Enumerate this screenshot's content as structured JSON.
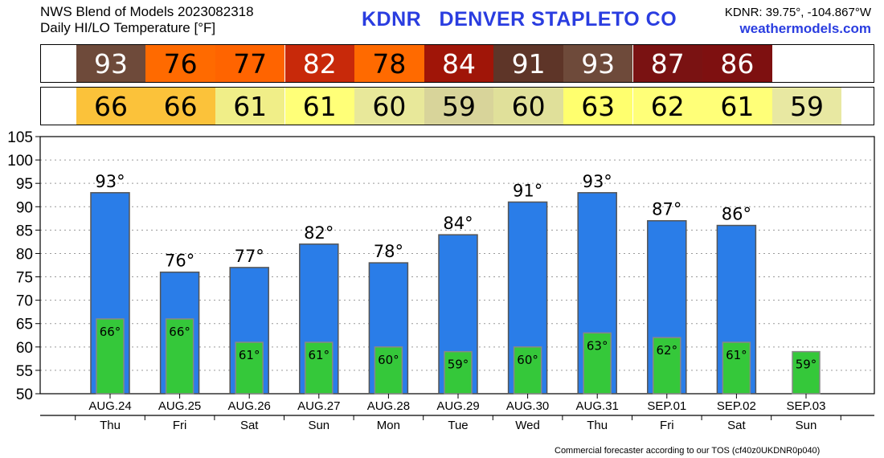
{
  "header": {
    "line1": "NWS Blend of Models 2023082318",
    "line2": "Daily HI/LO Temperature [°F]",
    "station": "KDNR   DENVER STAPLETO CO",
    "coords": "KDNR: 39.75°, -104.867°W",
    "site": "weathermodels.com"
  },
  "hi_strip": {
    "values": [
      "93",
      "76",
      "77",
      "82",
      "78",
      "84",
      "91",
      "93",
      "87",
      "86"
    ],
    "colors": [
      "#6e4a3a",
      "#ff6a00",
      "#ff6400",
      "#c8290a",
      "#ff6a00",
      "#a01508",
      "#5e3528",
      "#6e4a3a",
      "#7a1212",
      "#7e1010"
    ],
    "text_colors": [
      "#ffffff",
      "#000000",
      "#000000",
      "#ffffff",
      "#000000",
      "#ffffff",
      "#ffffff",
      "#ffffff",
      "#ffffff",
      "#ffffff"
    ]
  },
  "lo_strip": {
    "values": [
      "66",
      "66",
      "61",
      "61",
      "60",
      "59",
      "60",
      "63",
      "62",
      "61",
      "59"
    ],
    "colors": [
      "#fbc23a",
      "#fbc23a",
      "#f0ee88",
      "#ffff78",
      "#e8e89a",
      "#d8d49a",
      "#e0e09a",
      "#ffff6e",
      "#ffff78",
      "#ffff78",
      "#e8e8a2"
    ]
  },
  "footer": "Commercial forecaster according to our TOS (cf40z0UKDNR0p040)",
  "chart_data": {
    "type": "bar",
    "categories": [
      "AUG.24",
      "AUG.25",
      "AUG.26",
      "AUG.27",
      "AUG.28",
      "AUG.29",
      "AUG.30",
      "AUG.31",
      "SEP.01",
      "SEP.02",
      "SEP.03"
    ],
    "weekdays": [
      "Thu",
      "Fri",
      "Sat",
      "Sun",
      "Mon",
      "Tue",
      "Wed",
      "Thu",
      "Fri",
      "Sat",
      "Sun"
    ],
    "series": [
      {
        "values": [
          93,
          76,
          77,
          82,
          78,
          84,
          91,
          93,
          87,
          86,
          null
        ],
        "color": "#2a7de8",
        "labels": [
          "93°",
          "76°",
          "77°",
          "82°",
          "78°",
          "84°",
          "91°",
          "93°",
          "87°",
          "86°",
          ""
        ]
      },
      {
        "values": [
          66,
          66,
          61,
          61,
          60,
          59,
          60,
          63,
          62,
          61,
          59
        ],
        "color": "#35c83a",
        "labels": [
          "66°",
          "66°",
          "61°",
          "61°",
          "60°",
          "59°",
          "60°",
          "63°",
          "62°",
          "61°",
          "59°"
        ]
      }
    ],
    "ylim": [
      50,
      105
    ],
    "yticks": [
      "50",
      "55",
      "60",
      "65",
      "70",
      "75",
      "80",
      "85",
      "90",
      "95",
      "100",
      "105"
    ],
    "grid": true
  }
}
